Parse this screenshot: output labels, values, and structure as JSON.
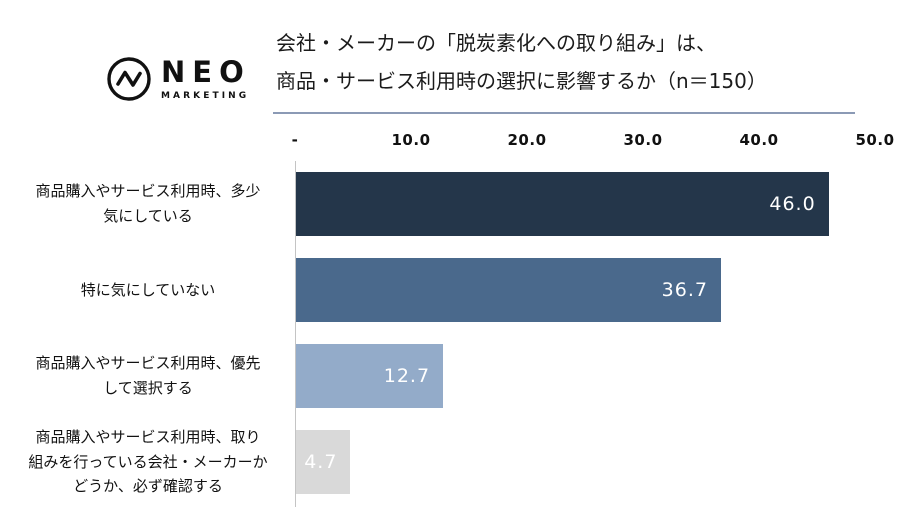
{
  "logo": {
    "name": "NEO",
    "sub": "MARKETING"
  },
  "title": {
    "line1": "会社・メーカーの「脱炭素化への取り組み」は、",
    "line2": "商品・サービス利用時の選択に影響するか（n＝150）"
  },
  "chart_data": {
    "type": "bar",
    "orientation": "horizontal",
    "title": "会社・メーカーの「脱炭素化への取り組み」は、商品・サービス利用時の選択に影響するか（n＝150）",
    "sample_size": 150,
    "categories": [
      "商品購入やサービス利用時、多少気にしている",
      "特に気にしていない",
      "商品購入やサービス利用時、優先して選択する",
      "商品購入やサービス利用時、取り組みを行っている会社・メーカーかどうか、必ず確認する"
    ],
    "categories_wrapped": [
      "商品購入やサービス利用時、多少\n気にしている",
      "特に気にしていない",
      "商品購入やサービス利用時、優先\nして選択する",
      "商品購入やサービス利用時、取り\n組みを行っている会社・メーカーか\nどうか、必ず確認する"
    ],
    "values": [
      46.0,
      36.7,
      12.7,
      4.7
    ],
    "value_labels": [
      "46.0",
      "36.7",
      "12.7",
      "4.7"
    ],
    "bar_colors": [
      "#24364a",
      "#4a698c",
      "#93abc9",
      "#d9d9d9"
    ],
    "value_label_color": "#ffffff",
    "xlim": [
      0,
      50
    ],
    "x_ticks": [
      "-",
      "10.0",
      "20.0",
      "30.0",
      "40.0",
      "50.0"
    ],
    "grid": false,
    "legend": false
  },
  "colors": {
    "underline": "#8b9ab5",
    "axis_line": "#c4c4c4",
    "background": "#ffffff"
  }
}
